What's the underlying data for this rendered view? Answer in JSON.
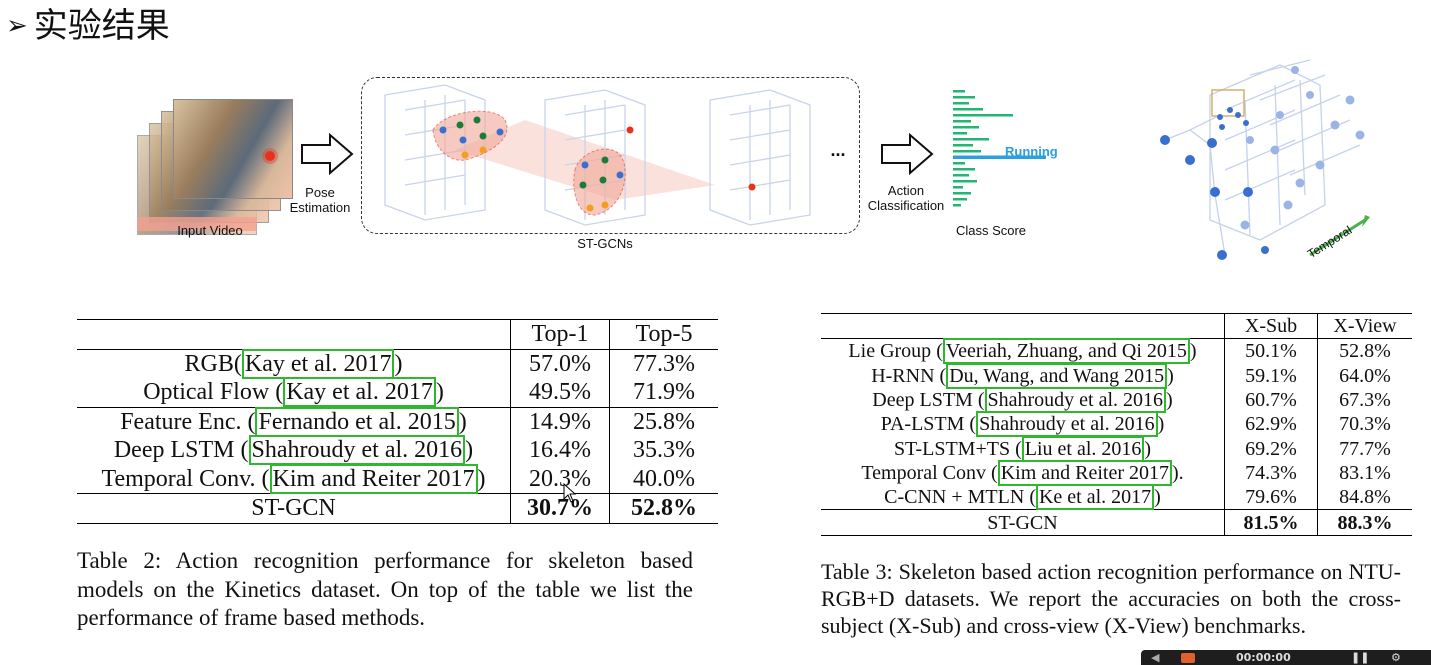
{
  "slide": {
    "title": "实验结果"
  },
  "figure": {
    "input_label": "Input Video",
    "pose_label_1": "Pose",
    "pose_label_2": "Estimation",
    "stgcn_label": "ST-GCNs",
    "ellipsis": "...",
    "action_label_1": "Action",
    "action_label_2": "Classification",
    "class_score_label": "Class Score",
    "running_label": "Running",
    "temporal_label": "Temporal",
    "colors": {
      "highlight": "#2aa0e0",
      "bars": "#22b573",
      "accent_red": "#e8321e",
      "node_blue": "#3a6fd0"
    }
  },
  "table2": {
    "headers": [
      "",
      "Top-1",
      "Top-5"
    ],
    "rows": [
      {
        "method": "RGB",
        "cite": "Kay et al. 2017",
        "top1": "57.0%",
        "top5": "77.3%"
      },
      {
        "method": "Optical Flow ",
        "cite": "Kay et al. 2017",
        "top1": "49.5%",
        "top5": "71.9%"
      },
      {
        "method": "Feature Enc. ",
        "cite": "Fernando et al. 2015",
        "top1": "14.9%",
        "top5": "25.8%"
      },
      {
        "method": "Deep LSTM ",
        "cite": "Shahroudy et al. 2016",
        "top1": "16.4%",
        "top5": "35.3%"
      },
      {
        "method": "Temporal Conv. ",
        "cite": "Kim and Reiter 2017",
        "top1": "20.3%",
        "top5": "40.0%"
      }
    ],
    "last": {
      "method": "ST-GCN",
      "top1": "30.7%",
      "top5": "52.8%"
    },
    "caption": "Table 2: Action recognition performance for skeleton based models on the Kinetics dataset. On top of the table we list the performance of frame based methods."
  },
  "table3": {
    "headers": [
      "",
      "X-Sub",
      "X-View"
    ],
    "rows": [
      {
        "method": "Lie Group ",
        "cite": "Veeriah, Zhuang, and Qi 2015",
        "xsub": "50.1%",
        "xview": "52.8%"
      },
      {
        "method": "H-RNN ",
        "cite": "Du, Wang, and Wang 2015",
        "xsub": "59.1%",
        "xview": "64.0%"
      },
      {
        "method": "Deep LSTM ",
        "cite": "Shahroudy et al. 2016",
        "xsub": "60.7%",
        "xview": "67.3%"
      },
      {
        "method": "PA-LSTM ",
        "cite": "Shahroudy et al. 2016",
        "xsub": "62.9%",
        "xview": "70.3%"
      },
      {
        "method": "ST-LSTM+TS ",
        "cite": "Liu et al. 2016",
        "xsub": "69.2%",
        "xview": "77.7%"
      },
      {
        "method": "Temporal Conv ",
        "cite": "Kim and Reiter 2017",
        "suffix": ".",
        "xsub": "74.3%",
        "xview": "83.1%"
      },
      {
        "method": "C-CNN + MTLN ",
        "cite": "Ke et al. 2017",
        "xsub": "79.6%",
        "xview": "84.8%"
      }
    ],
    "last": {
      "method": "ST-GCN",
      "xsub": "81.5%",
      "xview": "88.3%"
    },
    "caption": "Table 3: Skeleton based action recognition performance on NTU-RGB+D datasets. We report the accuracies on both the cross-subject (X-Sub) and cross-view (X-View) benchmarks."
  },
  "taskbar": {
    "time": "00:00:00"
  }
}
